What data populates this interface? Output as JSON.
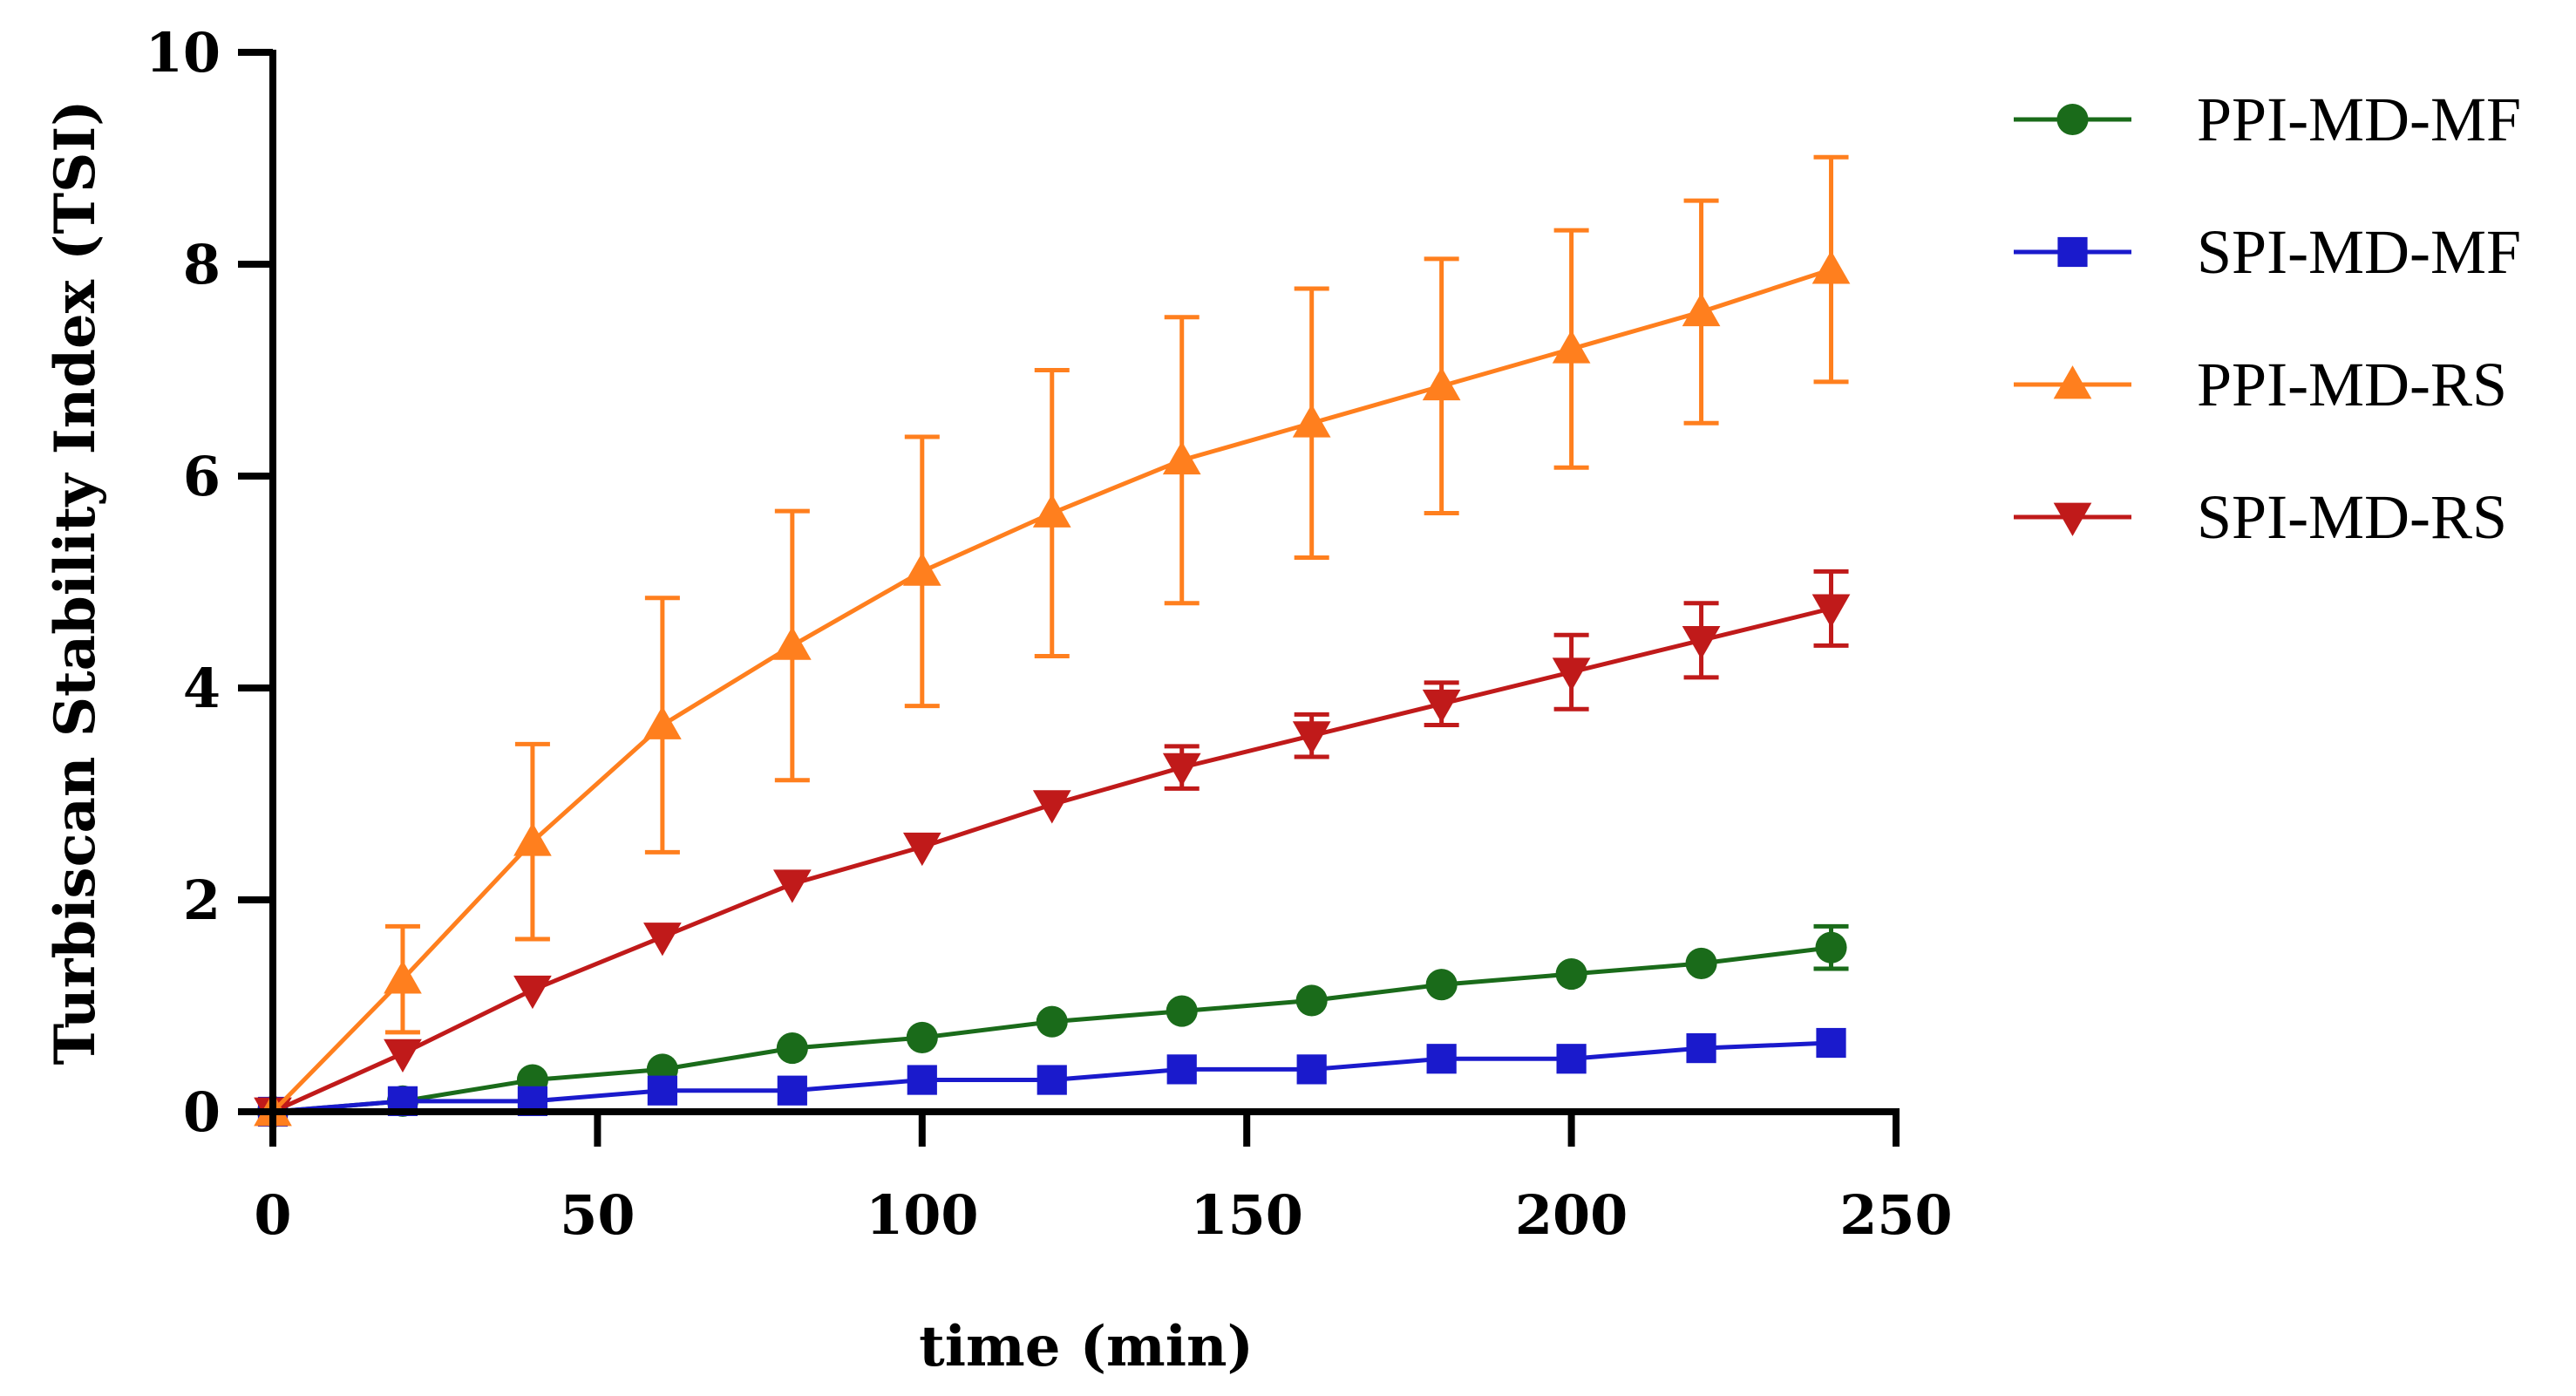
{
  "chart_data": {
    "type": "line",
    "title": "",
    "xlabel": "time (min)",
    "ylabel": "Turbiscan Stability Index (TSI)",
    "xlim": [
      0,
      250
    ],
    "ylim": [
      0,
      10
    ],
    "x_ticks": [
      "0",
      "50",
      "100",
      "150",
      "200",
      "250"
    ],
    "y_ticks": [
      "0",
      "2",
      "4",
      "6",
      "8",
      "10"
    ],
    "grid": false,
    "legend_position": "right",
    "x": [
      0,
      20,
      40,
      60,
      80,
      100,
      120,
      140,
      160,
      180,
      200,
      220,
      240
    ],
    "series": [
      {
        "name": "PPI-MD-MF",
        "marker": "circle",
        "color": "#1a6b1a",
        "values": [
          0,
          0.1,
          0.3,
          0.4,
          0.6,
          0.7,
          0.85,
          0.95,
          1.05,
          1.2,
          1.3,
          1.4,
          1.55
        ],
        "errors": [
          0,
          0,
          0,
          0,
          0,
          0,
          0,
          0,
          0,
          0,
          0,
          0,
          0.2
        ]
      },
      {
        "name": "SPI-MD-MF",
        "marker": "square",
        "color": "#1a1acc",
        "values": [
          0,
          0.1,
          0.1,
          0.2,
          0.2,
          0.3,
          0.3,
          0.4,
          0.4,
          0.5,
          0.5,
          0.6,
          0.65
        ],
        "errors": [
          0,
          0,
          0,
          0,
          0,
          0,
          0,
          0,
          0,
          0,
          0,
          0,
          0
        ]
      },
      {
        "name": "PPI-MD-RS",
        "marker": "triangle-up",
        "color": "#ff7f1e",
        "values": [
          0,
          1.25,
          2.55,
          3.65,
          4.4,
          5.1,
          5.65,
          6.15,
          6.5,
          6.85,
          7.2,
          7.55,
          7.95
        ],
        "errors": [
          0,
          0.5,
          0.92,
          1.2,
          1.27,
          1.27,
          1.35,
          1.35,
          1.27,
          1.2,
          1.12,
          1.05,
          1.06
        ]
      },
      {
        "name": "SPI-MD-RS",
        "marker": "triangle-down",
        "color": "#c01a1a",
        "values": [
          0,
          0.55,
          1.15,
          1.65,
          2.15,
          2.5,
          2.9,
          3.25,
          3.55,
          3.85,
          4.15,
          4.45,
          4.75
        ],
        "errors": [
          0,
          0,
          0,
          0,
          0,
          0,
          0,
          0.2,
          0.2,
          0.2,
          0.35,
          0.35,
          0.35
        ]
      }
    ]
  }
}
